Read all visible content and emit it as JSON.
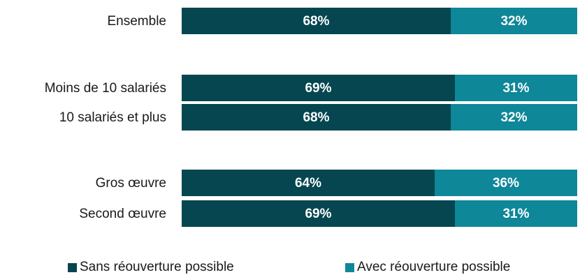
{
  "chart_data": {
    "type": "bar",
    "orientation": "horizontal",
    "stacked": true,
    "categories": [
      "Ensemble",
      "Moins de 10 salariés",
      "10 salariés et plus",
      "Gros œuvre",
      "Second œuvre"
    ],
    "series": [
      {
        "name": "Sans réouverture possible",
        "color": "#054650",
        "values": [
          68,
          69,
          68,
          64,
          69
        ],
        "labels": [
          "68%",
          "69%",
          "68%",
          "64%",
          "69%"
        ]
      },
      {
        "name": "Avec réouverture possible",
        "color": "#0E8799",
        "values": [
          32,
          31,
          32,
          36,
          31
        ],
        "labels": [
          "32%",
          "31%",
          "32%",
          "36%",
          "31%"
        ]
      }
    ],
    "xlim": [
      0,
      100
    ],
    "grid": false,
    "legend_position": "bottom"
  }
}
